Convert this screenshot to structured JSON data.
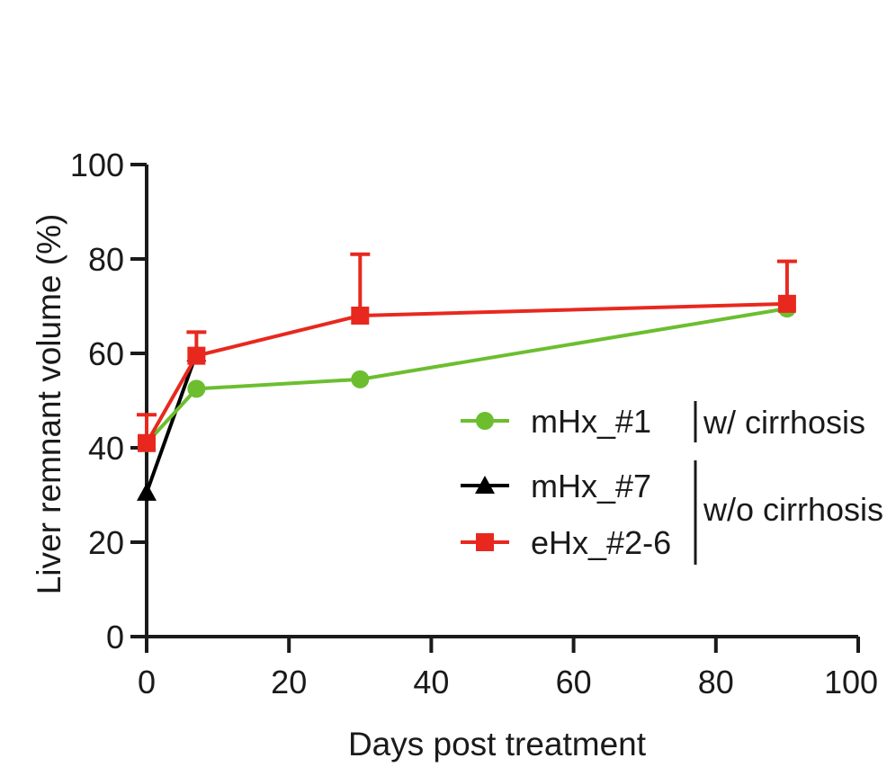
{
  "chart_data": {
    "type": "line",
    "title": "",
    "xlabel": "Days post treatment",
    "ylabel": "Liver remnant volume (%)",
    "xlim": [
      0,
      100
    ],
    "ylim": [
      0,
      100
    ],
    "xticks": [
      0,
      20,
      40,
      60,
      80,
      100
    ],
    "yticks": [
      0,
      20,
      40,
      60,
      80,
      100
    ],
    "grid": false,
    "legend_position": "right",
    "series": [
      {
        "name": "mHx_#1",
        "color": "#6cbe2f",
        "marker": "circle",
        "x": [
          0,
          7,
          30,
          90
        ],
        "y": [
          41,
          52.5,
          54.5,
          69.5
        ],
        "error_upper": [
          null,
          null,
          null,
          null
        ]
      },
      {
        "name": "mHx_#7",
        "color": "#000000",
        "marker": "triangle",
        "x": [
          0,
          7
        ],
        "y": [
          30.5,
          60
        ],
        "error_upper": [
          null,
          null
        ]
      },
      {
        "name": "eHx_#2-6",
        "color": "#e8281e",
        "marker": "square",
        "x": [
          0,
          7,
          30,
          90
        ],
        "y": [
          41,
          59.5,
          68,
          70.5
        ],
        "error_upper": [
          47,
          64.5,
          81,
          79.5
        ]
      }
    ],
    "legend_groups": [
      {
        "label": "w/ cirrhosis",
        "members": [
          "mHx_#1"
        ]
      },
      {
        "label": "w/o cirrhosis",
        "members": [
          "mHx_#7",
          "eHx_#2-6"
        ]
      }
    ]
  }
}
